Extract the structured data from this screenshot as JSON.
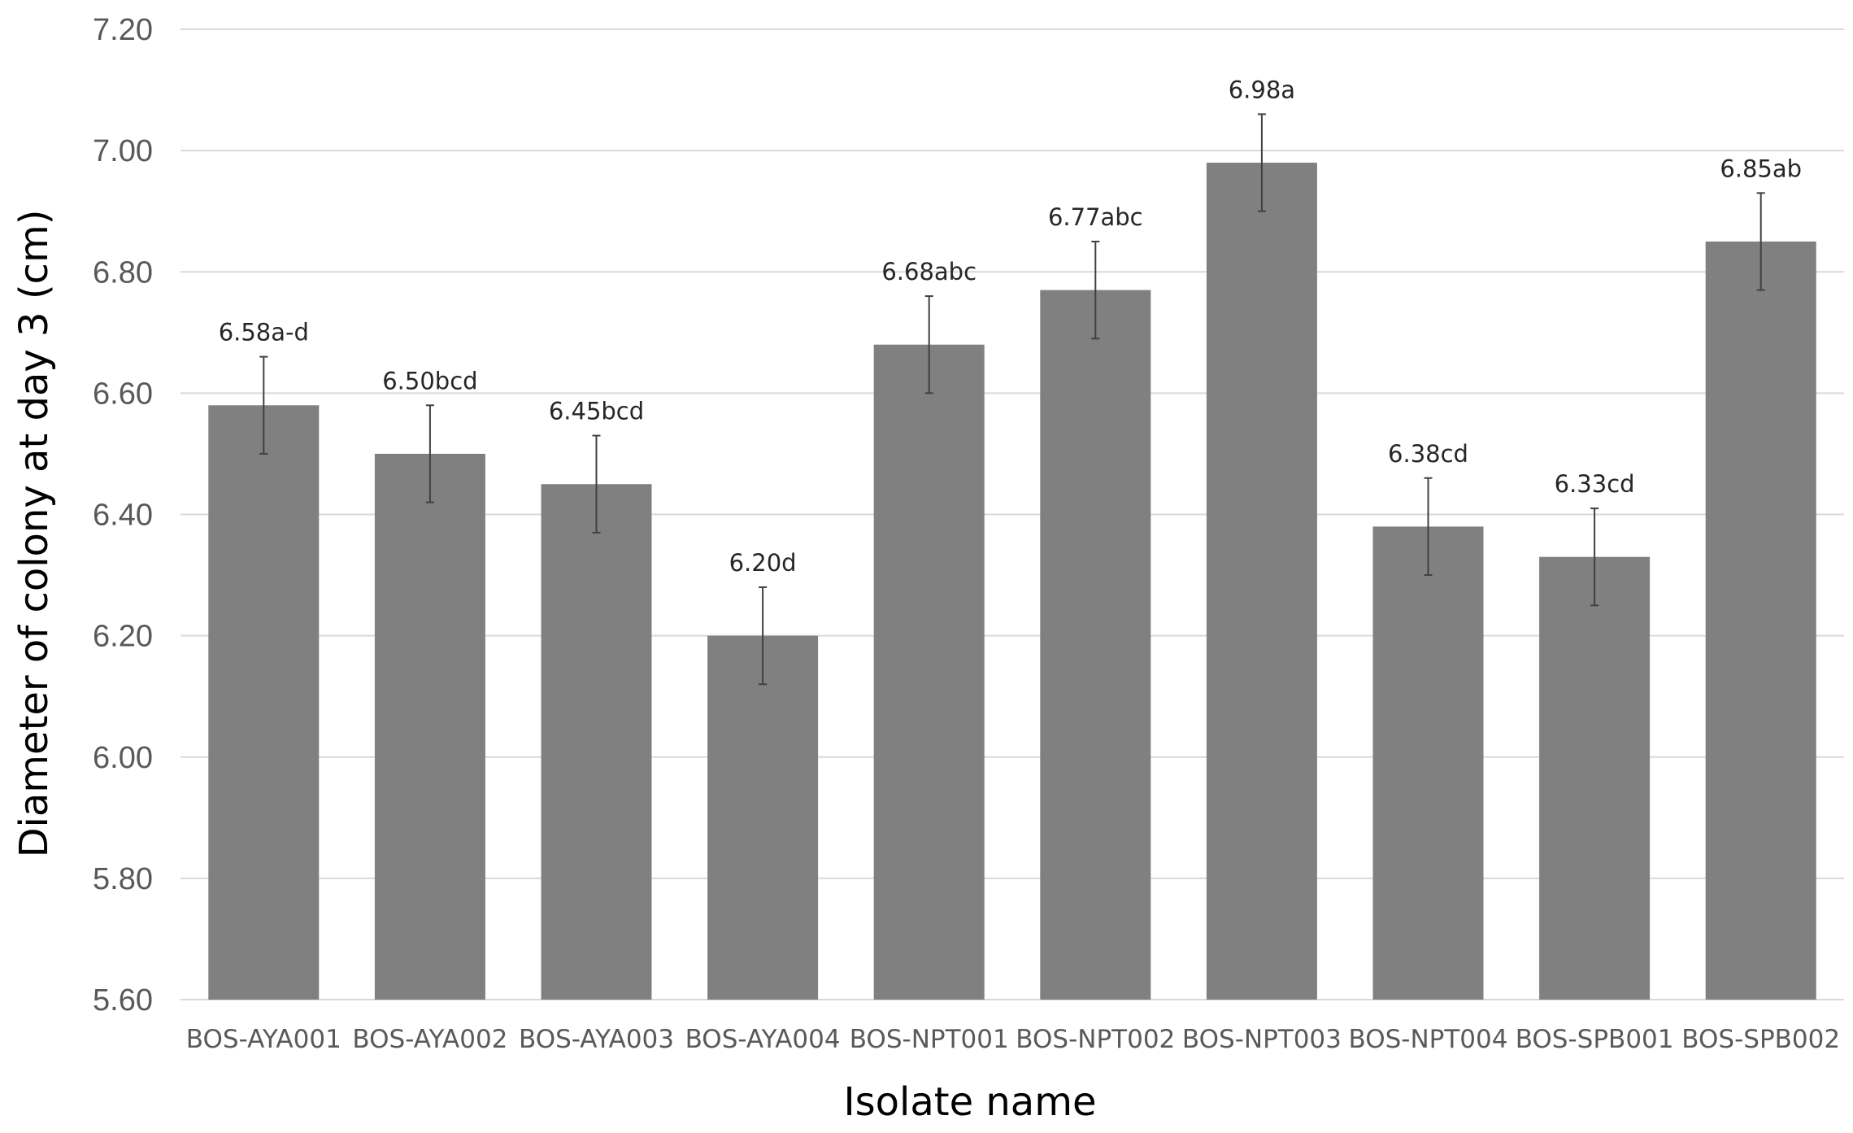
{
  "chart_data": {
    "type": "bar",
    "title": "",
    "xlabel": "Isolate name",
    "ylabel": "Diameter of colony at day 3 (cm)",
    "ylim": [
      5.6,
      7.2
    ],
    "ytick_step": 0.2,
    "ytick_labels": [
      "5.60",
      "5.80",
      "6.00",
      "6.20",
      "6.40",
      "6.60",
      "6.80",
      "7.00",
      "7.20"
    ],
    "grid": "horizontal",
    "legend": "none",
    "categories": [
      "BOS-AYA001",
      "BOS-AYA002",
      "BOS-AYA003",
      "BOS-AYA004",
      "BOS-NPT001",
      "BOS-NPT002",
      "BOS-NPT003",
      "BOS-NPT004",
      "BOS-SPB001",
      "BOS-SPB002"
    ],
    "values": [
      6.58,
      6.5,
      6.45,
      6.2,
      6.68,
      6.77,
      6.98,
      6.38,
      6.33,
      6.85
    ],
    "error": [
      0.08,
      0.08,
      0.08,
      0.08,
      0.08,
      0.08,
      0.08,
      0.08,
      0.08,
      0.08
    ],
    "data_labels": [
      "6.58a-d",
      "6.50bcd",
      "6.45bcd",
      "6.20d",
      "6.68abc",
      "6.77abc",
      "6.98a",
      "6.38cd",
      "6.33cd",
      "6.85ab"
    ],
    "colors": {
      "bar": "#808080",
      "grid": "#d9d9d9",
      "error_bar": "#404040",
      "axis": "#d9d9d9"
    }
  }
}
